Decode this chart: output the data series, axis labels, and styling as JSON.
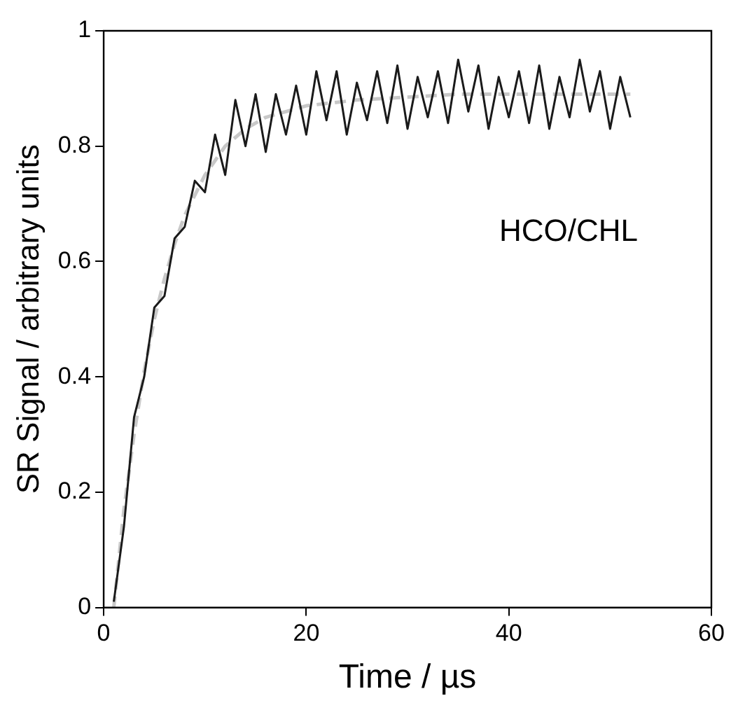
{
  "chart_data": {
    "type": "line",
    "xlabel": "Time / µs",
    "ylabel": "SR Signal / arbitrary units",
    "xlim": [
      0,
      60
    ],
    "xticks": [
      0,
      20,
      40,
      60
    ],
    "ylim": [
      0,
      1
    ],
    "yticks": [
      0,
      0.2,
      0.4,
      0.6,
      0.8,
      1
    ],
    "annotations": [
      "HCO/CHL"
    ],
    "series": [
      {
        "color": "#1a1a1a",
        "line_style": "solid",
        "x": [
          1,
          2,
          3,
          4,
          5,
          6,
          7,
          8,
          9,
          10,
          11,
          12,
          13,
          14,
          15,
          16,
          17,
          18,
          19,
          20,
          21,
          22,
          23,
          24,
          25,
          26,
          27,
          28,
          29,
          30,
          31,
          32,
          33,
          34,
          35,
          36,
          37,
          38,
          39,
          40,
          41,
          42,
          43,
          44,
          45,
          46,
          47,
          48,
          49,
          50,
          51,
          52
        ],
        "values": [
          0.01,
          0.14,
          0.33,
          0.4,
          0.52,
          0.54,
          0.64,
          0.66,
          0.74,
          0.72,
          0.82,
          0.75,
          0.88,
          0.8,
          0.89,
          0.79,
          0.89,
          0.82,
          0.905,
          0.82,
          0.93,
          0.845,
          0.93,
          0.82,
          0.91,
          0.845,
          0.93,
          0.84,
          0.94,
          0.83,
          0.92,
          0.85,
          0.93,
          0.84,
          0.95,
          0.86,
          0.94,
          0.83,
          0.92,
          0.85,
          0.93,
          0.84,
          0.94,
          0.83,
          0.92,
          0.85,
          0.95,
          0.86,
          0.93,
          0.83,
          0.92,
          0.85
        ]
      },
      {
        "color": "#c8c8c8",
        "line_style": "dashed",
        "x": [
          1,
          2,
          3,
          4,
          5,
          6,
          7,
          8,
          10,
          12,
          14,
          16,
          18,
          20,
          25,
          30,
          35,
          40,
          45,
          52
        ],
        "values": [
          0,
          0.17,
          0.3,
          0.41,
          0.5,
          0.57,
          0.63,
          0.68,
          0.75,
          0.8,
          0.83,
          0.85,
          0.86,
          0.87,
          0.88,
          0.885,
          0.89,
          0.89,
          0.89,
          0.89
        ]
      }
    ]
  }
}
